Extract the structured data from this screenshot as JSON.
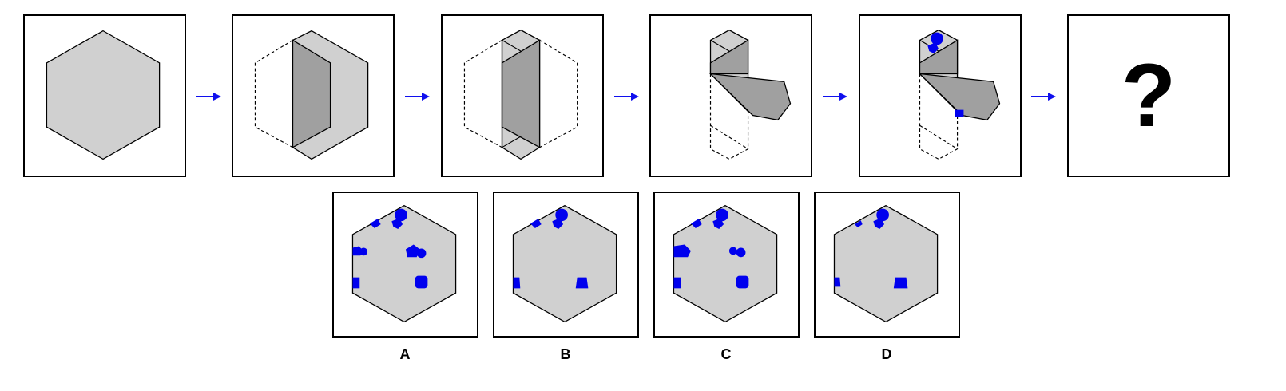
{
  "question_mark": "?",
  "options": [
    {
      "label": "A"
    },
    {
      "label": "B"
    },
    {
      "label": "C"
    },
    {
      "label": "D"
    }
  ],
  "colors": {
    "paper": "#d0d0d0",
    "fold": "#a0a0a0",
    "punch": "#0000ee",
    "arrow": "#1010ee",
    "stroke": "#000000"
  }
}
